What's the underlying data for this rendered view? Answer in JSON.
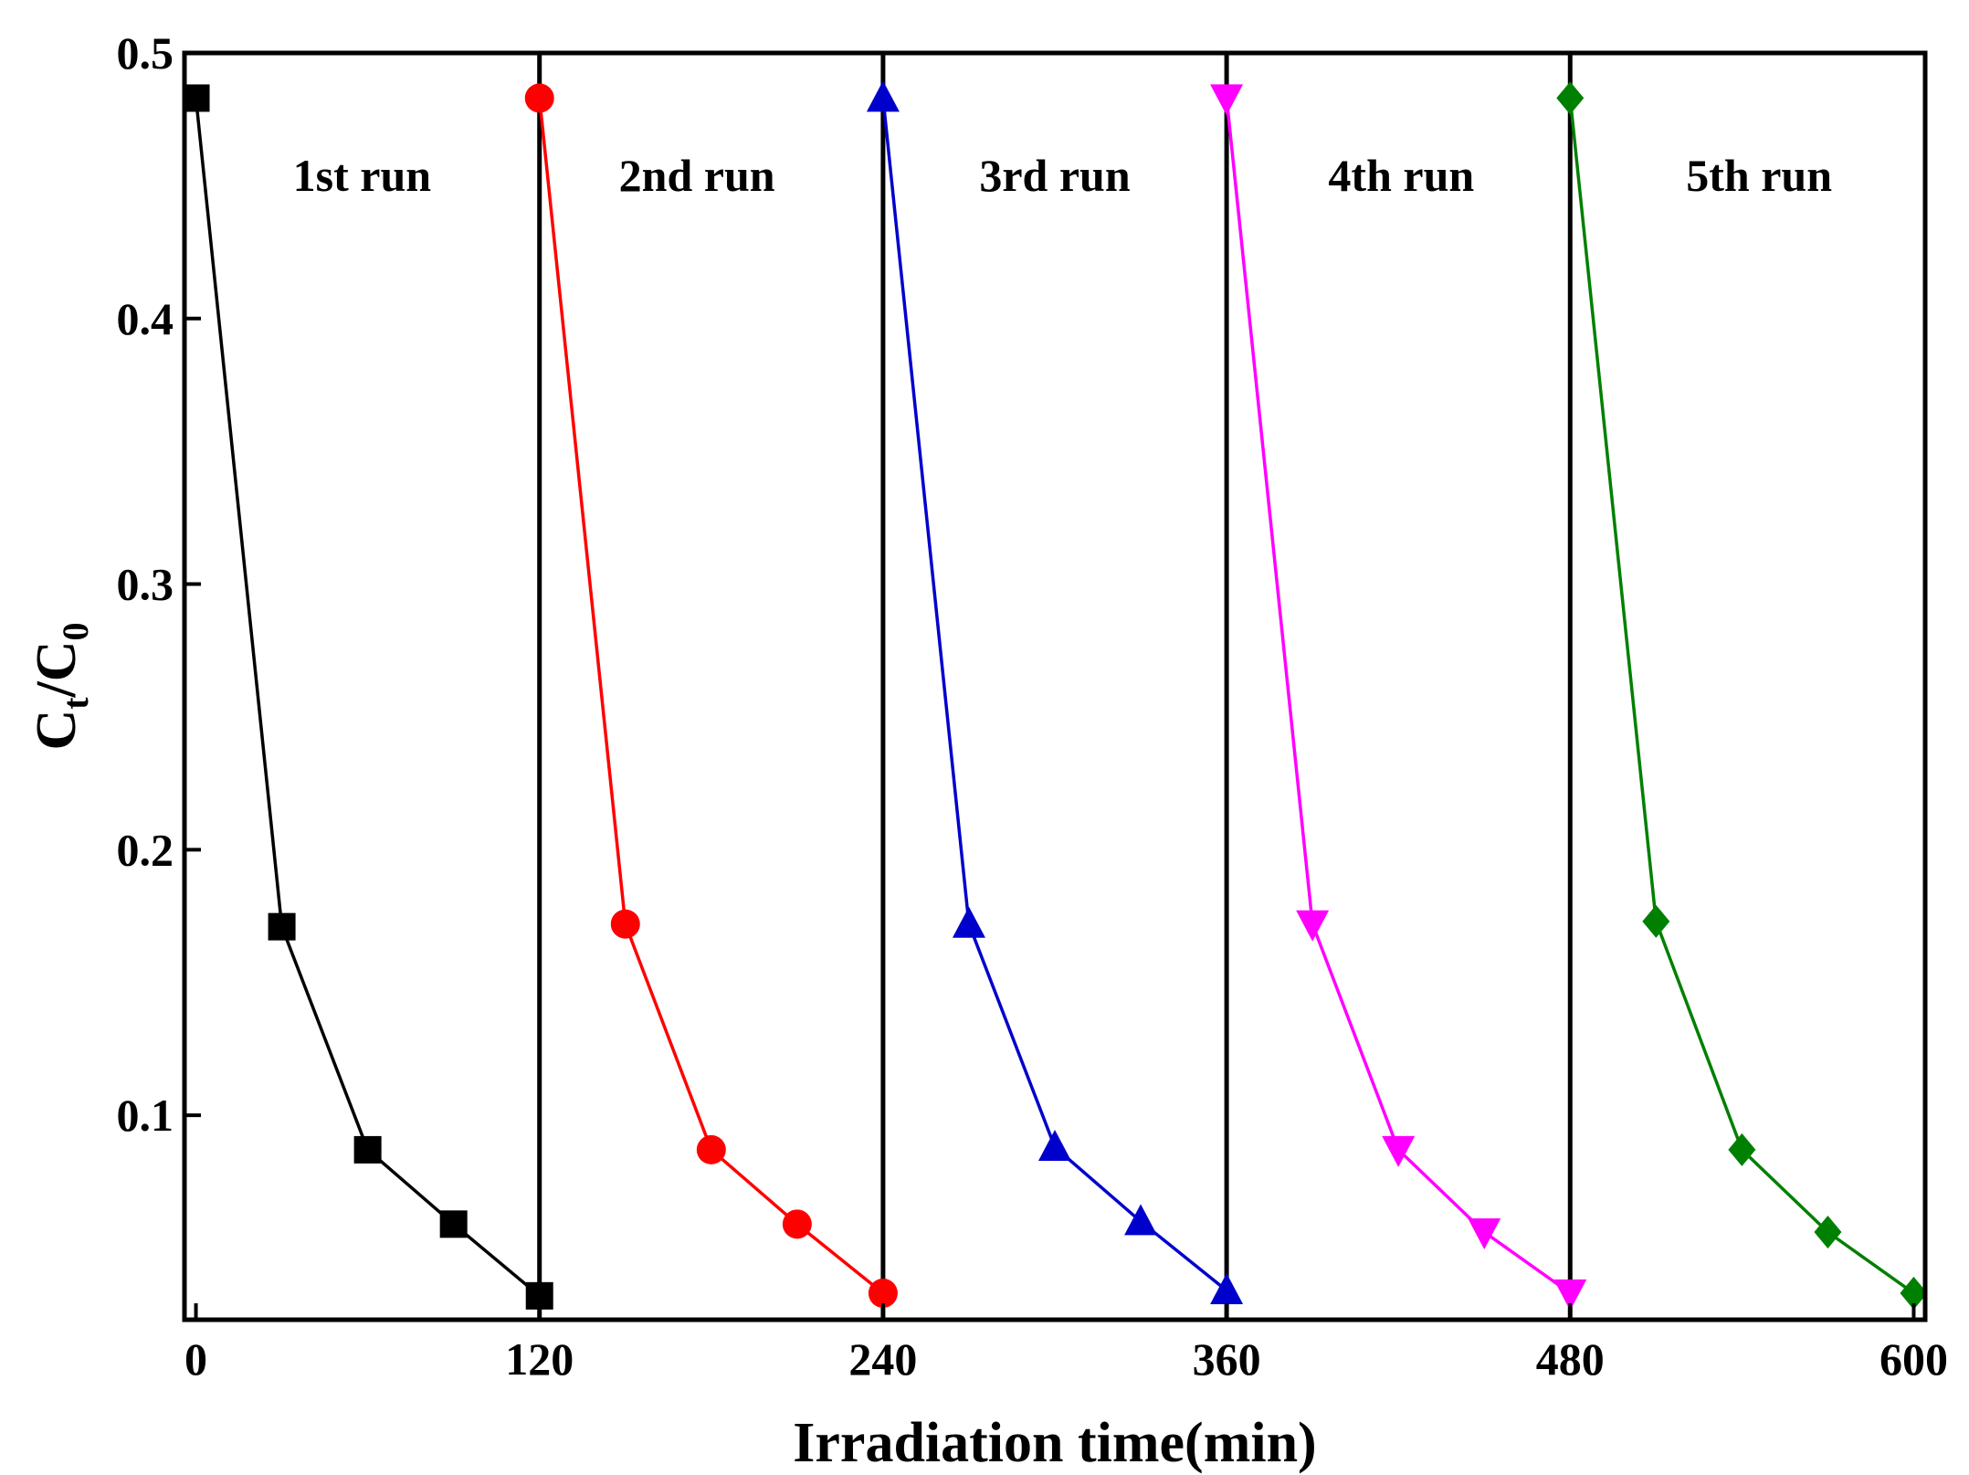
{
  "chart_data": {
    "type": "line",
    "title": "",
    "xlabel": "Irradiation time(min)",
    "ylabel": {
      "main": "C",
      "sub1": "t",
      "slash": "/C",
      "sub2": "0"
    },
    "xlim": [
      -4,
      604
    ],
    "ylim": [
      0.023,
      0.5
    ],
    "xticks": [
      0,
      120,
      240,
      360,
      480,
      600
    ],
    "yticks": [
      0.1,
      0.2,
      0.3,
      0.4,
      0.5
    ],
    "ytick_labels": [
      "0.1",
      "0.2",
      "0.3",
      "0.4",
      "0.5"
    ],
    "run_dividers": [
      120,
      240,
      360,
      480
    ],
    "series": [
      {
        "name": "1st run",
        "color": "#000000",
        "marker": "square",
        "x": [
          0,
          30,
          60,
          90,
          120
        ],
        "y": [
          0.483,
          0.171,
          0.087,
          0.059,
          0.032
        ]
      },
      {
        "name": "2nd run",
        "color": "#ff0000",
        "marker": "circle",
        "x": [
          120,
          150,
          180,
          210,
          240
        ],
        "y": [
          0.483,
          0.172,
          0.087,
          0.059,
          0.033
        ]
      },
      {
        "name": "3rd run",
        "color": "#0000cc",
        "marker": "triangle-up",
        "x": [
          240,
          270,
          300,
          330,
          360
        ],
        "y": [
          0.483,
          0.172,
          0.088,
          0.06,
          0.034
        ]
      },
      {
        "name": "4th run",
        "color": "#ff00ff",
        "marker": "triangle-down",
        "x": [
          360,
          390,
          420,
          450,
          480
        ],
        "y": [
          0.483,
          0.172,
          0.087,
          0.056,
          0.033
        ]
      },
      {
        "name": "5th run",
        "color": "#008000",
        "marker": "diamond",
        "x": [
          480,
          510,
          540,
          570,
          600
        ],
        "y": [
          0.483,
          0.173,
          0.087,
          0.056,
          0.033
        ]
      }
    ],
    "run_labels": [
      {
        "text": "1st run",
        "x": 58
      },
      {
        "text": "2nd run",
        "x": 175
      },
      {
        "text": "3rd run",
        "x": 300
      },
      {
        "text": "4th run",
        "x": 421
      },
      {
        "text": "5th run",
        "x": 546
      }
    ],
    "run_label_y": 0.454
  }
}
